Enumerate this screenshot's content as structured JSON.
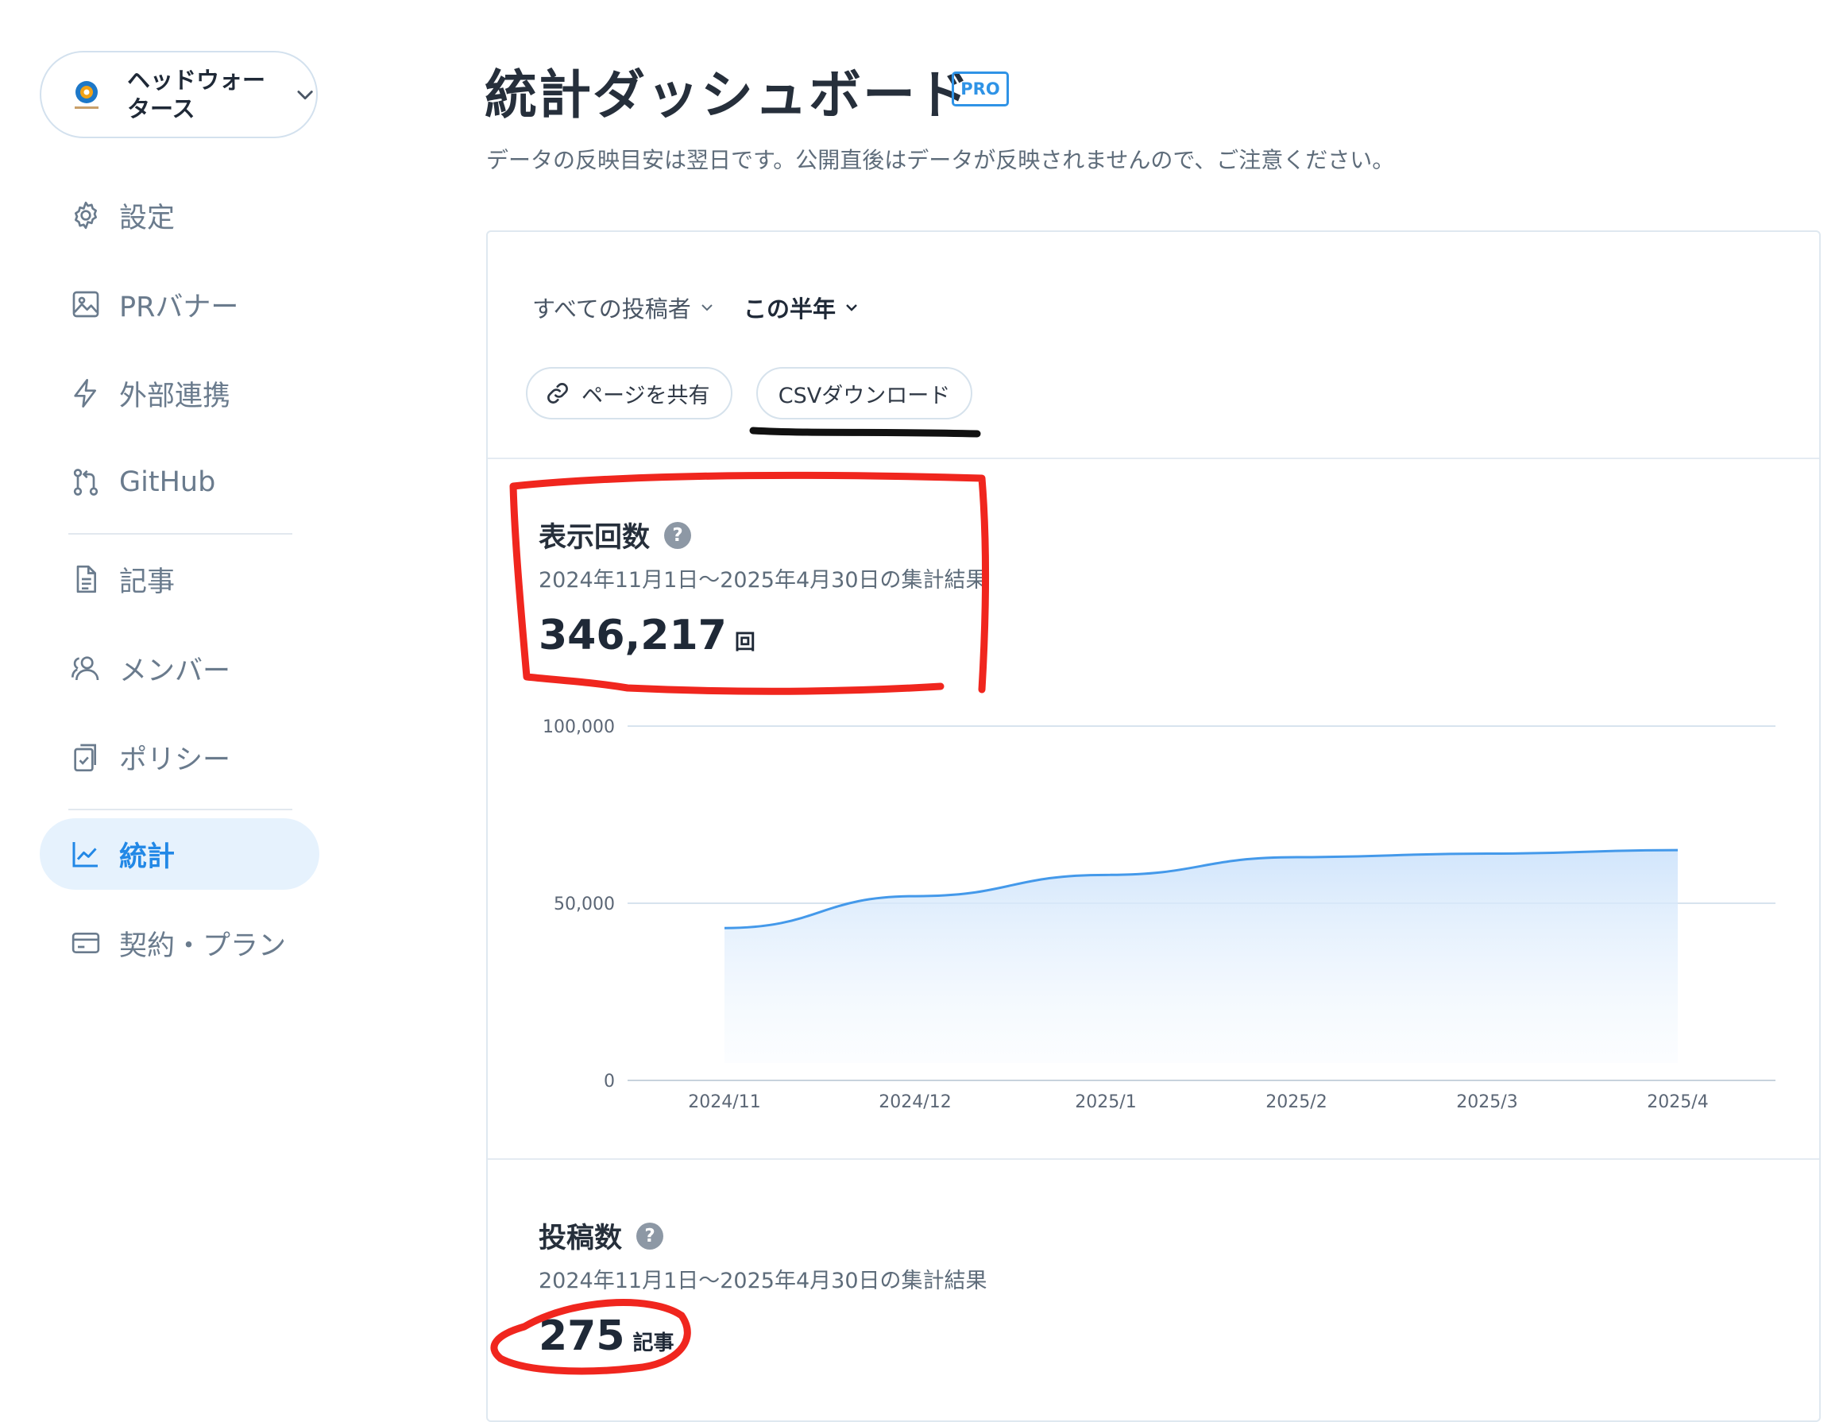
{
  "org": {
    "name_line1": "ヘッドウォー",
    "name_line2": "タース",
    "logo_icon": "headwaters-logo-icon"
  },
  "sidebar": {
    "items": [
      {
        "label": "設定",
        "icon": "gear-icon"
      },
      {
        "label": "PRバナー",
        "icon": "image-icon"
      },
      {
        "label": "外部連携",
        "icon": "lightning-icon"
      },
      {
        "label": "GitHub",
        "icon": "git-branch-icon"
      },
      {
        "label": "記事",
        "icon": "document-icon"
      },
      {
        "label": "メンバー",
        "icon": "users-icon"
      },
      {
        "label": "ポリシー",
        "icon": "clipboard-check-icon"
      },
      {
        "label": "統計",
        "icon": "line-chart-icon",
        "active": true
      },
      {
        "label": "契約・プラン",
        "icon": "credit-card-icon"
      }
    ]
  },
  "header": {
    "title": "統計ダッシュボード",
    "badge": "PRO",
    "notice": "データの反映目安は翌日です。公開直後はデータが反映されませんので、ご注意ください。"
  },
  "filters": {
    "author": "すべての投稿者",
    "period": "この半年"
  },
  "actions": {
    "share": "ページを共有",
    "csv": "CSVダウンロード"
  },
  "views": {
    "title": "表示回数",
    "period_text": "2024年11月1日〜2025年4月30日の集計結果",
    "total": "346,217",
    "unit": "回"
  },
  "posts": {
    "title": "投稿数",
    "period_text": "2024年11月1日〜2025年4月30日の集計結果",
    "total": "275",
    "unit": "記事"
  },
  "help_mark": "?",
  "colors": {
    "accent": "#2288e6",
    "line": "#4499ea",
    "annotation_red": "#f0261e",
    "annotation_black": "#111111"
  },
  "chart_data": {
    "type": "area",
    "categories": [
      "2024/11",
      "2024/12",
      "2025/1",
      "2025/2",
      "2025/3",
      "2025/4"
    ],
    "values": [
      43000,
      52000,
      58000,
      63000,
      64000,
      65000
    ],
    "y_ticks": [
      0,
      50000,
      100000
    ],
    "y_tick_labels": [
      "0",
      "50,000",
      "100,000"
    ],
    "ylim": [
      0,
      100000
    ],
    "grid": true,
    "title": "",
    "xlabel": "",
    "ylabel": ""
  }
}
